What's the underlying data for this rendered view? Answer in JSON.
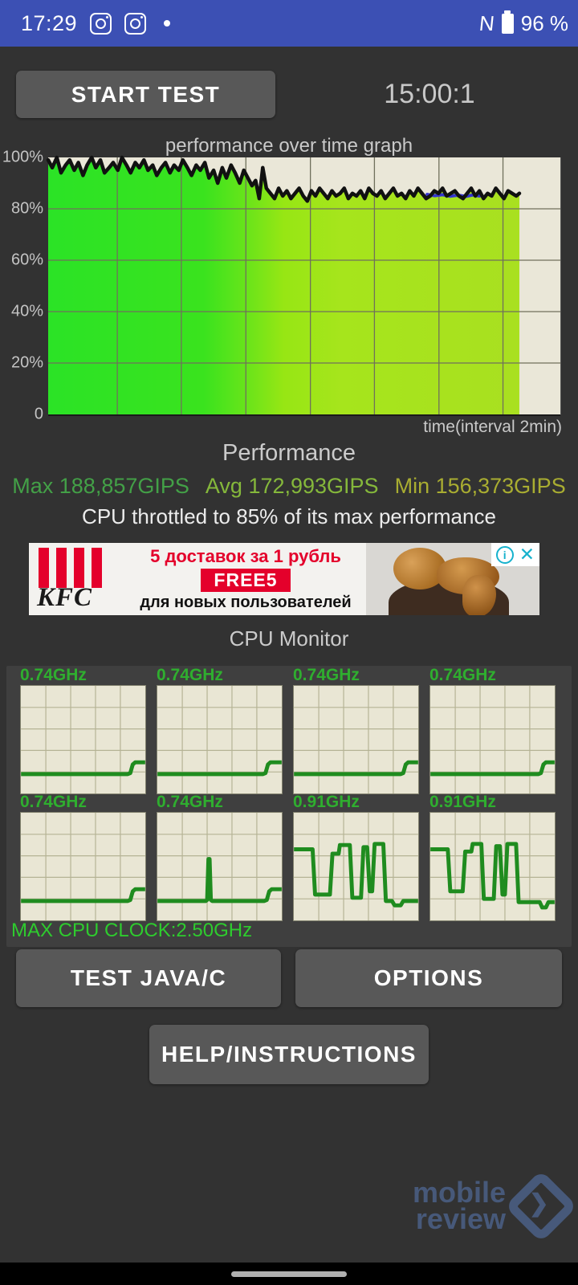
{
  "status_bar": {
    "time": "17:29",
    "battery": "96 %"
  },
  "toolbar": {
    "start_label": "START TEST",
    "timer": "15:00:1"
  },
  "chart_data": {
    "type": "area",
    "title": "performance over time graph",
    "xlabel": "time(interval 2min)",
    "yticks": [
      "100%",
      "80%",
      "60%",
      "40%",
      "20%",
      "0"
    ],
    "ylim": [
      0,
      100
    ],
    "x_range": [
      0,
      100
    ],
    "x_interval_label": "2min",
    "data_end_x": 92,
    "grid": {
      "x_lines": [
        13.5,
        26,
        38.6,
        51.2,
        63.7,
        76.3,
        88.8
      ],
      "y_step_pct": 20
    },
    "fill_stops": [
      [
        0,
        "#2be326"
      ],
      [
        0.33,
        "#3ae31e"
      ],
      [
        0.42,
        "#68e41a"
      ],
      [
        0.5,
        "#97e614"
      ],
      [
        0.62,
        "#a6e51c"
      ],
      [
        1,
        "#a9e020"
      ]
    ],
    "series": [
      {
        "name": "performance_pct",
        "color": "#111111",
        "points": [
          [
            0,
            99
          ],
          [
            0.8,
            96
          ],
          [
            1.7,
            100
          ],
          [
            2.5,
            94
          ],
          [
            3.4,
            97
          ],
          [
            4.2,
            99
          ],
          [
            5.1,
            95
          ],
          [
            5.9,
            98
          ],
          [
            6.8,
            93
          ],
          [
            7.6,
            97
          ],
          [
            8.5,
            100
          ],
          [
            9.3,
            96
          ],
          [
            10.2,
            99
          ],
          [
            11,
            94
          ],
          [
            11.9,
            96
          ],
          [
            12.7,
            98
          ],
          [
            13.6,
            95
          ],
          [
            14.4,
            100
          ],
          [
            15.3,
            97
          ],
          [
            16.1,
            94
          ],
          [
            17,
            98
          ],
          [
            17.8,
            96
          ],
          [
            18.7,
            99
          ],
          [
            19.5,
            95
          ],
          [
            20.4,
            97
          ],
          [
            21.2,
            93
          ],
          [
            22.1,
            96
          ],
          [
            22.9,
            98
          ],
          [
            23.8,
            94
          ],
          [
            24.6,
            97
          ],
          [
            25.5,
            95
          ],
          [
            26.3,
            99
          ],
          [
            27.2,
            96
          ],
          [
            28,
            93
          ],
          [
            28.9,
            97
          ],
          [
            29.7,
            95
          ],
          [
            30.6,
            98
          ],
          [
            31.4,
            92
          ],
          [
            32.3,
            95
          ],
          [
            33.1,
            90
          ],
          [
            34,
            96
          ],
          [
            34.8,
            92
          ],
          [
            35.7,
            97
          ],
          [
            36.5,
            94
          ],
          [
            37.4,
            90
          ],
          [
            38.2,
            95
          ],
          [
            39,
            92
          ],
          [
            39.8,
            89
          ],
          [
            40.5,
            91
          ],
          [
            41.2,
            84
          ],
          [
            41.9,
            96
          ],
          [
            42.6,
            88
          ],
          [
            43.4,
            86
          ],
          [
            44.2,
            84
          ],
          [
            45,
            88
          ],
          [
            45.8,
            85
          ],
          [
            46.6,
            87
          ],
          [
            47.4,
            84
          ],
          [
            48.2,
            86
          ],
          [
            49,
            88
          ],
          [
            49.8,
            85
          ],
          [
            50.6,
            83
          ],
          [
            51.4,
            87
          ],
          [
            52.2,
            85
          ],
          [
            53,
            88
          ],
          [
            53.8,
            86
          ],
          [
            54.6,
            84
          ],
          [
            55.4,
            87
          ],
          [
            56.2,
            85
          ],
          [
            57,
            86
          ],
          [
            57.8,
            88
          ],
          [
            58.6,
            84
          ],
          [
            59.4,
            86
          ],
          [
            60.2,
            85
          ],
          [
            61,
            87
          ],
          [
            61.8,
            84
          ],
          [
            62.6,
            88
          ],
          [
            63.4,
            86
          ],
          [
            64.2,
            85
          ],
          [
            65,
            87
          ],
          [
            65.8,
            84
          ],
          [
            66.6,
            86
          ],
          [
            67.4,
            88
          ],
          [
            68.2,
            85
          ],
          [
            69,
            86
          ],
          [
            69.8,
            84
          ],
          [
            70.6,
            87
          ],
          [
            71.4,
            85
          ],
          [
            72.2,
            88
          ],
          [
            73,
            86
          ],
          [
            73.8,
            84
          ],
          [
            74.6,
            85
          ],
          [
            75.4,
            87
          ],
          [
            76.2,
            86
          ],
          [
            77,
            88
          ],
          [
            77.8,
            85
          ],
          [
            78.6,
            86
          ],
          [
            79.4,
            87
          ],
          [
            80.2,
            85
          ],
          [
            81,
            84
          ],
          [
            81.8,
            86
          ],
          [
            82.6,
            88
          ],
          [
            83.4,
            85
          ],
          [
            84.2,
            87
          ],
          [
            85,
            84
          ],
          [
            85.8,
            86
          ],
          [
            86.6,
            85
          ],
          [
            87.4,
            88
          ],
          [
            88.2,
            86
          ],
          [
            89,
            84
          ],
          [
            89.8,
            87
          ],
          [
            90.6,
            86
          ],
          [
            91.4,
            85
          ],
          [
            92,
            86
          ]
        ]
      },
      {
        "name": "secondary_run",
        "color": "#3434cf",
        "points": [
          [
            74,
            85.6
          ],
          [
            75.5,
            85.1
          ],
          [
            77,
            85.5
          ],
          [
            78.5,
            84.9
          ],
          [
            80,
            85.3
          ],
          [
            81.5,
            84.8
          ],
          [
            83,
            85.4
          ],
          [
            84.2,
            85
          ]
        ]
      }
    ]
  },
  "performance": {
    "title": "Performance",
    "max": "Max 188,857GIPS",
    "avg": "Avg 172,993GIPS",
    "min": "Min 156,373GIPS",
    "throttle_note": "CPU throttled to 85% of its max performance"
  },
  "ad": {
    "brand": "KFC",
    "headline": "5 доставок за 1 рубль",
    "coupon": "FREE5",
    "subline": "для новых пользователей",
    "info_glyph": "i",
    "close_glyph": "✕"
  },
  "cpu_monitor": {
    "title": "CPU Monitor",
    "max_clock": "MAX CPU CLOCK:2.50GHz",
    "line_color": "#1f8c1f",
    "cores": [
      {
        "label": "0.74GHz",
        "points": [
          [
            0,
            18
          ],
          [
            86,
            18
          ],
          [
            88,
            19
          ],
          [
            90,
            27
          ],
          [
            92,
            29
          ],
          [
            100,
            29
          ]
        ]
      },
      {
        "label": "0.74GHz",
        "points": [
          [
            0,
            18
          ],
          [
            85,
            18
          ],
          [
            87,
            19
          ],
          [
            89,
            27
          ],
          [
            91,
            29
          ],
          [
            100,
            29
          ]
        ]
      },
      {
        "label": "0.74GHz",
        "points": [
          [
            0,
            18
          ],
          [
            86,
            18
          ],
          [
            88,
            19
          ],
          [
            90,
            27
          ],
          [
            92,
            29
          ],
          [
            100,
            29
          ]
        ]
      },
      {
        "label": "0.74GHz",
        "points": [
          [
            0,
            18
          ],
          [
            87,
            18
          ],
          [
            89,
            19
          ],
          [
            91,
            27
          ],
          [
            93,
            29
          ],
          [
            100,
            29
          ]
        ]
      },
      {
        "label": "0.74GHz",
        "points": [
          [
            0,
            18
          ],
          [
            86,
            18
          ],
          [
            88,
            19
          ],
          [
            90,
            27
          ],
          [
            92,
            29
          ],
          [
            100,
            29
          ]
        ]
      },
      {
        "label": "0.74GHz",
        "points": [
          [
            0,
            18
          ],
          [
            39,
            18
          ],
          [
            40,
            19
          ],
          [
            41,
            57
          ],
          [
            42,
            57
          ],
          [
            43,
            19
          ],
          [
            44,
            18
          ],
          [
            86,
            18
          ],
          [
            88,
            19
          ],
          [
            90,
            27
          ],
          [
            92,
            29
          ],
          [
            100,
            29
          ]
        ]
      },
      {
        "label": "0.91GHz",
        "points": [
          [
            0,
            66
          ],
          [
            15,
            66
          ],
          [
            17,
            24
          ],
          [
            29,
            24
          ],
          [
            31,
            62
          ],
          [
            36,
            62
          ],
          [
            37,
            70
          ],
          [
            45,
            70
          ],
          [
            47,
            21
          ],
          [
            54,
            21
          ],
          [
            56,
            68
          ],
          [
            59,
            68
          ],
          [
            61,
            27
          ],
          [
            63,
            27
          ],
          [
            65,
            71
          ],
          [
            72,
            71
          ],
          [
            74,
            18
          ],
          [
            79,
            18
          ],
          [
            81,
            14
          ],
          [
            86,
            14
          ],
          [
            88,
            18
          ],
          [
            100,
            18
          ]
        ]
      },
      {
        "label": "0.91GHz",
        "points": [
          [
            0,
            66
          ],
          [
            14,
            66
          ],
          [
            16,
            27
          ],
          [
            26,
            27
          ],
          [
            28,
            64
          ],
          [
            33,
            64
          ],
          [
            34,
            71
          ],
          [
            41,
            71
          ],
          [
            43,
            20
          ],
          [
            51,
            20
          ],
          [
            53,
            69
          ],
          [
            56,
            69
          ],
          [
            58,
            24
          ],
          [
            60,
            24
          ],
          [
            62,
            71
          ],
          [
            69,
            71
          ],
          [
            71,
            17
          ],
          [
            88,
            17
          ],
          [
            90,
            12
          ],
          [
            93,
            12
          ],
          [
            95,
            17
          ],
          [
            100,
            17
          ]
        ]
      }
    ]
  },
  "buttons": {
    "test_java": "TEST JAVA/C",
    "options": "OPTIONS",
    "help": "HELP/INSTRUCTIONS"
  },
  "watermark": {
    "line1": "mobile",
    "line2": "review",
    "arrow_glyph": "❯"
  },
  "colors": {
    "status_bar": "#3c50b4",
    "app_bg": "#323232",
    "button": "#585858",
    "plot_bg": "#eae7d8",
    "max": "#43a047",
    "avg": "#85b83b",
    "min": "#a9ad31",
    "core_label": "#2fae2f",
    "ad_red": "#e4002b",
    "watermark": "#47597a"
  }
}
